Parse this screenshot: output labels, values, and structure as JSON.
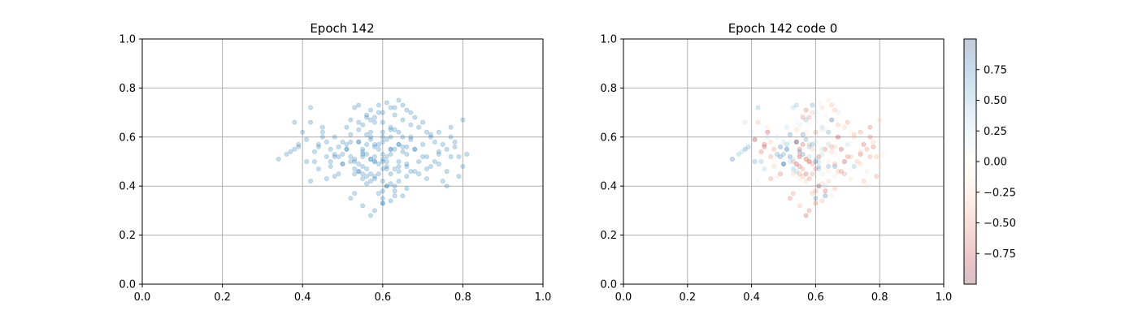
{
  "chart_data": [
    {
      "type": "scatter",
      "title": "Epoch 142",
      "xlabel": "",
      "ylabel": "",
      "xlim": [
        0.0,
        1.0
      ],
      "ylim": [
        0.0,
        1.0
      ],
      "xticks": [
        "0.0",
        "0.2",
        "0.4",
        "0.6",
        "0.8",
        "1.0"
      ],
      "yticks": [
        "0.0",
        "0.2",
        "0.4",
        "0.6",
        "0.8",
        "1.0"
      ],
      "grid": true,
      "marker_color": "#1f77b4",
      "marker_alpha": 0.25,
      "points": {
        "x": [
          0.62,
          0.58,
          0.64,
          0.55,
          0.6,
          0.67,
          0.52,
          0.57,
          0.63,
          0.7,
          0.5,
          0.6,
          0.66,
          0.54,
          0.61,
          0.59,
          0.56,
          0.65,
          0.53,
          0.68,
          0.62,
          0.58,
          0.6,
          0.64,
          0.71,
          0.49,
          0.57,
          0.63,
          0.55,
          0.61,
          0.6,
          0.66,
          0.52,
          0.69,
          0.62,
          0.58,
          0.65,
          0.54,
          0.6,
          0.56,
          0.63,
          0.59,
          0.67,
          0.51,
          0.61,
          0.64,
          0.57,
          0.72,
          0.53,
          0.6,
          0.66,
          0.55,
          0.62,
          0.58,
          0.6,
          0.64,
          0.48,
          0.68,
          0.56,
          0.61,
          0.59,
          0.63,
          0.74,
          0.5,
          0.62,
          0.57,
          0.65,
          0.54,
          0.6,
          0.67,
          0.41,
          0.44,
          0.46,
          0.47,
          0.43,
          0.45,
          0.42,
          0.48,
          0.46,
          0.44,
          0.45,
          0.47,
          0.43,
          0.46,
          0.49,
          0.44,
          0.42,
          0.47,
          0.45,
          0.48,
          0.36,
          0.38,
          0.39,
          0.37,
          0.34,
          0.38,
          0.4,
          0.42,
          0.39,
          0.41,
          0.76,
          0.78,
          0.77,
          0.79,
          0.8,
          0.81,
          0.75,
          0.74,
          0.8,
          0.77,
          0.73,
          0.76,
          0.79,
          0.72,
          0.78,
          0.75,
          0.71,
          0.77,
          0.74,
          0.76,
          0.52,
          0.55,
          0.57,
          0.53,
          0.6,
          0.58,
          0.62,
          0.65,
          0.6,
          0.63,
          0.57,
          0.59,
          0.61,
          0.56,
          0.64,
          0.58,
          0.62,
          0.6,
          0.66,
          0.55,
          0.51,
          0.54,
          0.56,
          0.53,
          0.58,
          0.55,
          0.57,
          0.52,
          0.59,
          0.54,
          0.63,
          0.66,
          0.61,
          0.64,
          0.68,
          0.62,
          0.67,
          0.6,
          0.65,
          0.63,
          0.69,
          0.71,
          0.7,
          0.73,
          0.68,
          0.72,
          0.7,
          0.74,
          0.69,
          0.71,
          0.56,
          0.58,
          0.54,
          0.6,
          0.57,
          0.62,
          0.59,
          0.55,
          0.61,
          0.58,
          0.64,
          0.66,
          0.62,
          0.65,
          0.63,
          0.67,
          0.6,
          0.64,
          0.61,
          0.66,
          0.5,
          0.52,
          0.49,
          0.51,
          0.53,
          0.5,
          0.52,
          0.48,
          0.54,
          0.51,
          0.55,
          0.57,
          0.54,
          0.56,
          0.58,
          0.53,
          0.56,
          0.59,
          0.55,
          0.57
        ],
        "y": [
          0.6,
          0.57,
          0.62,
          0.55,
          0.58,
          0.59,
          0.52,
          0.6,
          0.55,
          0.57,
          0.49,
          0.62,
          0.53,
          0.58,
          0.5,
          0.55,
          0.53,
          0.6,
          0.47,
          0.55,
          0.45,
          0.5,
          0.42,
          0.48,
          0.52,
          0.56,
          0.45,
          0.4,
          0.43,
          0.47,
          0.38,
          0.44,
          0.61,
          0.5,
          0.64,
          0.66,
          0.67,
          0.63,
          0.7,
          0.68,
          0.72,
          0.73,
          0.65,
          0.55,
          0.52,
          0.57,
          0.62,
          0.48,
          0.5,
          0.6,
          0.48,
          0.52,
          0.55,
          0.44,
          0.5,
          0.42,
          0.6,
          0.46,
          0.41,
          0.4,
          0.37,
          0.36,
          0.53,
          0.58,
          0.63,
          0.67,
          0.56,
          0.46,
          0.35,
          0.6,
          0.59,
          0.57,
          0.52,
          0.48,
          0.54,
          0.62,
          0.66,
          0.44,
          0.43,
          0.56,
          0.6,
          0.5,
          0.5,
          0.58,
          0.45,
          0.47,
          0.42,
          0.55,
          0.64,
          0.52,
          0.53,
          0.55,
          0.56,
          0.54,
          0.51,
          0.66,
          0.62,
          0.72,
          0.57,
          0.5,
          0.55,
          0.58,
          0.6,
          0.52,
          0.48,
          0.53,
          0.57,
          0.62,
          0.67,
          0.64,
          0.5,
          0.46,
          0.44,
          0.6,
          0.56,
          0.42,
          0.47,
          0.52,
          0.54,
          0.4,
          0.35,
          0.32,
          0.28,
          0.37,
          0.33,
          0.3,
          0.34,
          0.36,
          0.33,
          0.38,
          0.42,
          0.45,
          0.4,
          0.44,
          0.46,
          0.43,
          0.41,
          0.47,
          0.39,
          0.45,
          0.64,
          0.66,
          0.69,
          0.72,
          0.68,
          0.65,
          0.71,
          0.67,
          0.7,
          0.73,
          0.69,
          0.71,
          0.74,
          0.75,
          0.68,
          0.72,
          0.7,
          0.66,
          0.73,
          0.63,
          0.64,
          0.62,
          0.66,
          0.58,
          0.55,
          0.61,
          0.52,
          0.49,
          0.45,
          0.43,
          0.61,
          0.56,
          0.58,
          0.51,
          0.59,
          0.53,
          0.57,
          0.54,
          0.48,
          0.52,
          0.5,
          0.49,
          0.55,
          0.54,
          0.47,
          0.46,
          0.53,
          0.57,
          0.59,
          0.56,
          0.53,
          0.5,
          0.52,
          0.55,
          0.51,
          0.49,
          0.58,
          0.53,
          0.46,
          0.57,
          0.48,
          0.51,
          0.49,
          0.47,
          0.5,
          0.45,
          0.57,
          0.49,
          0.53,
          0.51
        ]
      }
    },
    {
      "type": "scatter",
      "title": "Epoch 142 code 0",
      "xlabel": "",
      "ylabel": "",
      "xlim": [
        0.0,
        1.0
      ],
      "ylim": [
        0.0,
        1.0
      ],
      "xticks": [
        "0.0",
        "0.2",
        "0.4",
        "0.6",
        "0.8",
        "1.0"
      ],
      "yticks": [
        "0.0",
        "0.2",
        "0.4",
        "0.6",
        "0.8",
        "1.0"
      ],
      "grid": true,
      "colormap": [
        "#67001f",
        "#b2182b",
        "#d6604d",
        "#f4a582",
        "#fddbc7",
        "#fffde8",
        "#d1e5f0",
        "#92c5de",
        "#4393c3",
        "#2166ac",
        "#053061"
      ],
      "marker_alpha": 0.25,
      "colorbar": {
        "range": [
          -1.0,
          1.0
        ],
        "ticks": [
          0.75,
          0.5,
          0.25,
          0.0,
          -0.25,
          -0.5,
          -0.75
        ],
        "tick_labels": [
          "0.75",
          "0.50",
          "0.25",
          "0.00",
          "−0.25",
          "−0.50",
          "−0.75"
        ]
      },
      "code_values": [
        0.1,
        -0.4,
        0.6,
        -0.7,
        0.2,
        0.0,
        0.8,
        -0.2,
        -0.6,
        0.3,
        0.9,
        -0.5,
        0.1,
        -0.8,
        0.4,
        -0.3,
        0.7,
        -0.1,
        0.5,
        -0.9,
        0.2,
        -0.6,
        0.0,
        0.6,
        -0.4,
        0.8,
        -0.7,
        0.3,
        -0.2,
        0.5,
        -0.5,
        0.1,
        0.7,
        -0.8,
        0.4,
        -0.1,
        0.9,
        -0.3,
        0.2,
        -0.6,
        0.0,
        0.6,
        -0.4,
        0.8,
        -0.7,
        0.3,
        -0.2,
        0.5,
        -0.5,
        0.1,
        0.7,
        -0.8,
        0.4,
        -0.1,
        0.9,
        -0.3,
        0.2,
        -0.6,
        0.0,
        0.6,
        -0.4,
        0.8,
        -0.7,
        0.3,
        -0.2,
        0.5,
        -0.5,
        0.1,
        0.7,
        -0.8,
        -0.9,
        -0.7,
        -0.5,
        -0.3,
        -0.6,
        -0.8,
        -0.4,
        -0.2,
        -0.5,
        -0.7,
        0.3,
        -0.1,
        0.5,
        -0.3,
        -0.6,
        0.4,
        0.1,
        -0.5,
        -0.2,
        0.2,
        0.5,
        0.7,
        0.6,
        0.4,
        0.8,
        0.3,
        0.2,
        0.5,
        0.1,
        0.6,
        -0.5,
        -0.3,
        -0.6,
        -0.4,
        -0.2,
        -0.1,
        -0.7,
        -0.5,
        -0.3,
        -0.6,
        -0.4,
        -0.2,
        -0.5,
        -0.3,
        -0.6,
        -0.4,
        -0.1,
        -0.5,
        -0.3,
        -0.2,
        -0.6,
        -0.4,
        -0.7,
        -0.5,
        -0.3,
        -0.6,
        -0.4,
        -0.2,
        -0.5,
        -0.7,
        -0.3,
        -0.5,
        -0.6,
        -0.4,
        -0.2,
        -0.5,
        -0.3,
        -0.6,
        -0.4,
        -0.5,
        0.3,
        0.1,
        -0.2,
        0.4,
        -0.5,
        0.2,
        -0.6,
        0.0,
        -0.3,
        0.5,
        -0.1,
        -0.4,
        0.1,
        -0.2,
        0.0,
        -0.3,
        0.2,
        -0.1,
        -0.4,
        0.1,
        -0.3,
        -0.1,
        -0.5,
        0.0,
        -0.2,
        -0.4,
        -0.6,
        -0.3,
        -0.5,
        -0.2,
        0.7,
        0.5,
        0.8,
        0.4,
        0.6,
        0.3,
        0.6,
        0.7,
        0.5,
        0.4,
        -0.2,
        -0.5,
        0.0,
        -0.3,
        -0.1,
        -0.4,
        0.1,
        -0.2,
        0.0,
        -0.3,
        0.6,
        0.4,
        0.8,
        0.5,
        0.3,
        0.7,
        0.2,
        0.6,
        0.4,
        0.5,
        -0.7,
        -0.4,
        -0.8,
        -0.5,
        -0.6,
        -0.3,
        -0.7,
        -0.5,
        -0.4,
        -0.6
      ]
    }
  ]
}
